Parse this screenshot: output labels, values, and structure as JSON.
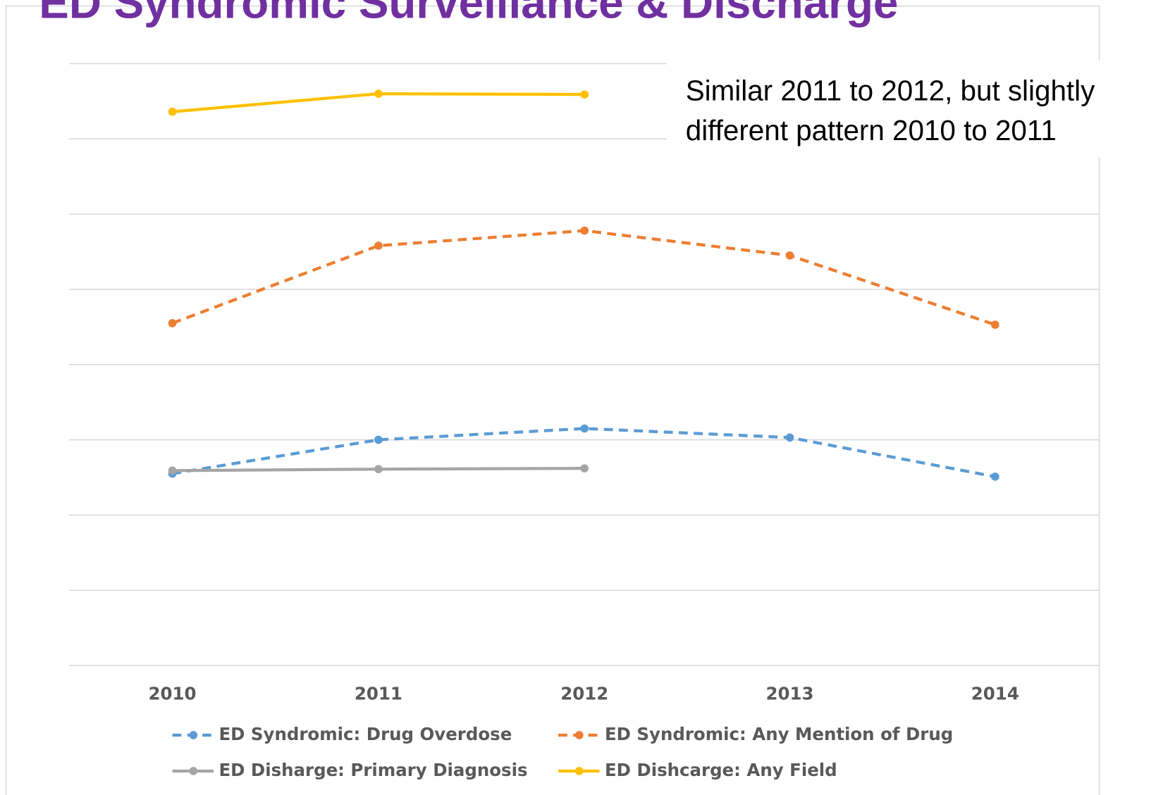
{
  "chart_data": {
    "type": "line",
    "title": "ED Syndromic Surveillance & Discharge",
    "annotation": [
      "Similar 2011 to 2012, but slightly",
      "different pattern 2010 to 2011"
    ],
    "categories": [
      "2010",
      "2011",
      "2012",
      "2013",
      "2014"
    ],
    "series": [
      {
        "name": "ED Syndromic: Drug Overdose",
        "color": "#5b9bd5",
        "dashed": true,
        "values": [
          2.55,
          3.0,
          3.15,
          3.03,
          2.51
        ]
      },
      {
        "name": "ED Syndromic: Any Mention of Drug",
        "color": "#ed7d31",
        "dashed": true,
        "values": [
          4.55,
          5.58,
          5.78,
          5.45,
          4.53
        ]
      },
      {
        "name": "ED Disharge: Primary Diagnosis",
        "color": "#a5a5a5",
        "dashed": false,
        "values": [
          2.59,
          2.61,
          2.62,
          null,
          null
        ]
      },
      {
        "name": "ED Dishcarge: Any Field",
        "color": "#ffc000",
        "dashed": false,
        "values": [
          7.36,
          7.6,
          7.59,
          null,
          null
        ]
      }
    ],
    "ylim": [
      0,
      8
    ],
    "yticks": [
      0,
      1,
      2,
      3,
      4,
      5,
      6,
      7,
      8
    ],
    "ytick_labels": false,
    "grid": true
  }
}
